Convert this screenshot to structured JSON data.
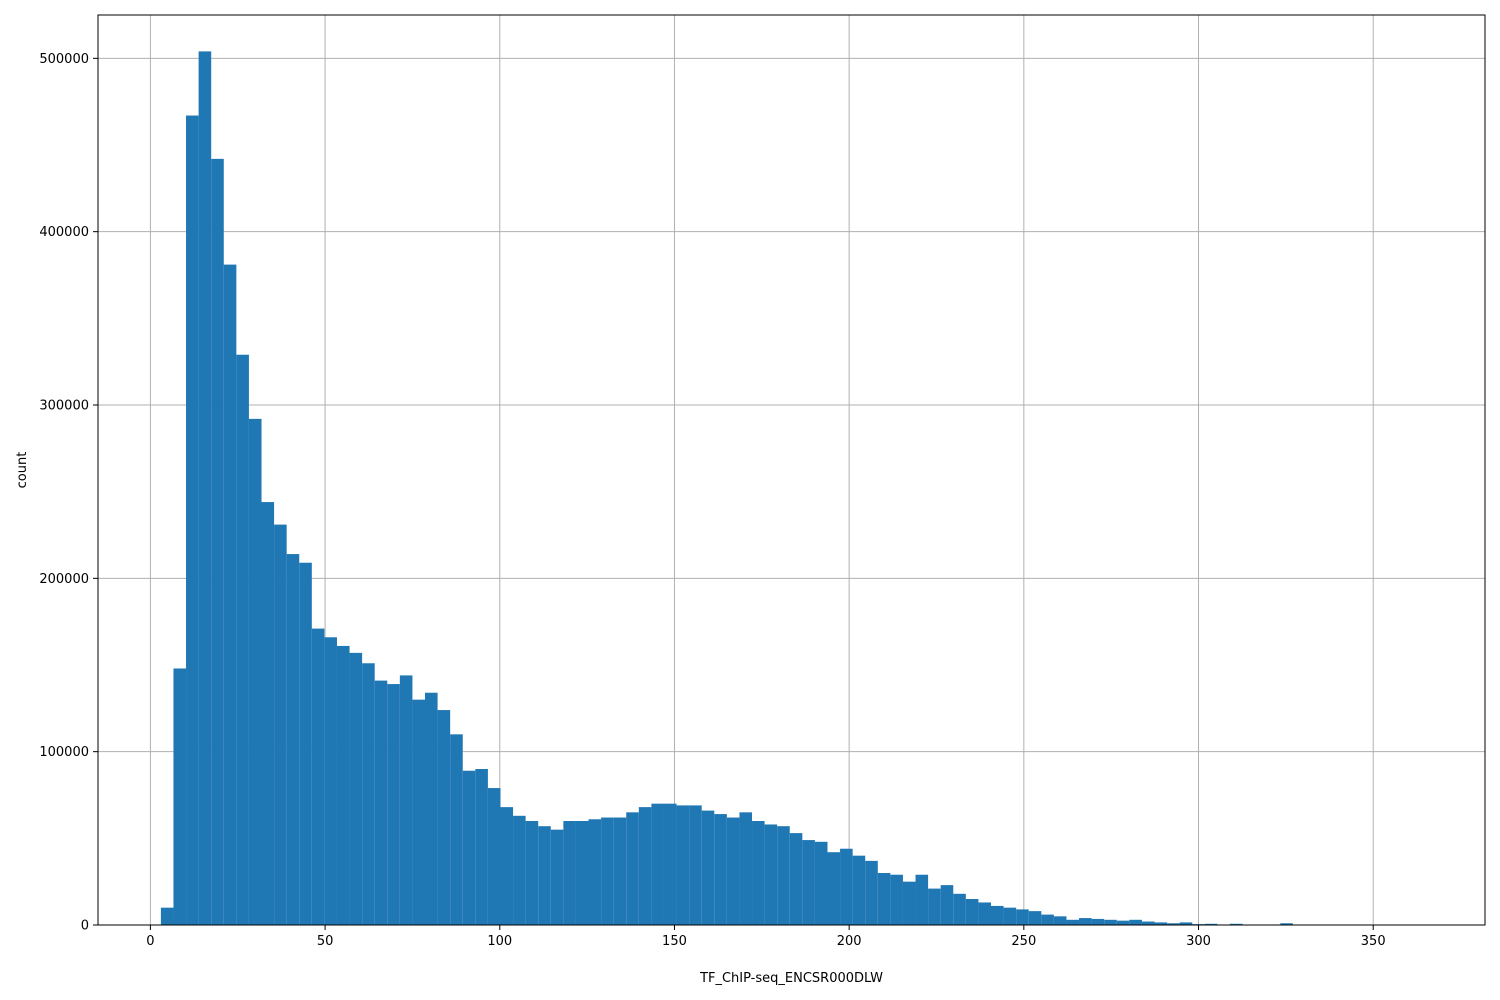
{
  "chart_data": {
    "type": "bar",
    "title": "",
    "xlabel": "TF_ChIP-seq_ENCSR000DLW",
    "ylabel": "count",
    "xlim": [
      -15,
      382
    ],
    "ylim": [
      0,
      525000
    ],
    "grid": true,
    "bar_color": "#1f77b4",
    "grid_color": "#b0b0b0",
    "xticks": [
      0,
      50,
      100,
      150,
      200,
      250,
      300,
      350
    ],
    "yticks": [
      0,
      100000,
      200000,
      300000,
      400000,
      500000
    ],
    "bin_start": 3,
    "bin_width": 3.6,
    "values": [
      10000,
      148000,
      467000,
      504000,
      442000,
      381000,
      329000,
      292000,
      244000,
      231000,
      214000,
      209000,
      171000,
      166000,
      161000,
      157000,
      151000,
      141000,
      139000,
      144000,
      130000,
      134000,
      124000,
      110000,
      89000,
      90000,
      79000,
      68000,
      63000,
      60000,
      57000,
      55000,
      60000,
      60000,
      61000,
      62000,
      62000,
      65000,
      68000,
      70000,
      70000,
      69000,
      69000,
      66000,
      64000,
      62000,
      65000,
      60000,
      58000,
      57000,
      53000,
      49000,
      48000,
      42000,
      44000,
      40000,
      37000,
      30000,
      29000,
      25000,
      29000,
      21000,
      23000,
      18000,
      15000,
      13000,
      11000,
      10000,
      9000,
      8000,
      6000,
      5000,
      3000,
      4000,
      3500,
      3000,
      2500,
      3000,
      2000,
      1500,
      1000,
      1500,
      500,
      700,
      300,
      700,
      200,
      100,
      300,
      1000,
      200,
      100,
      100,
      100,
      100,
      50,
      50,
      50,
      50,
      50
    ]
  }
}
